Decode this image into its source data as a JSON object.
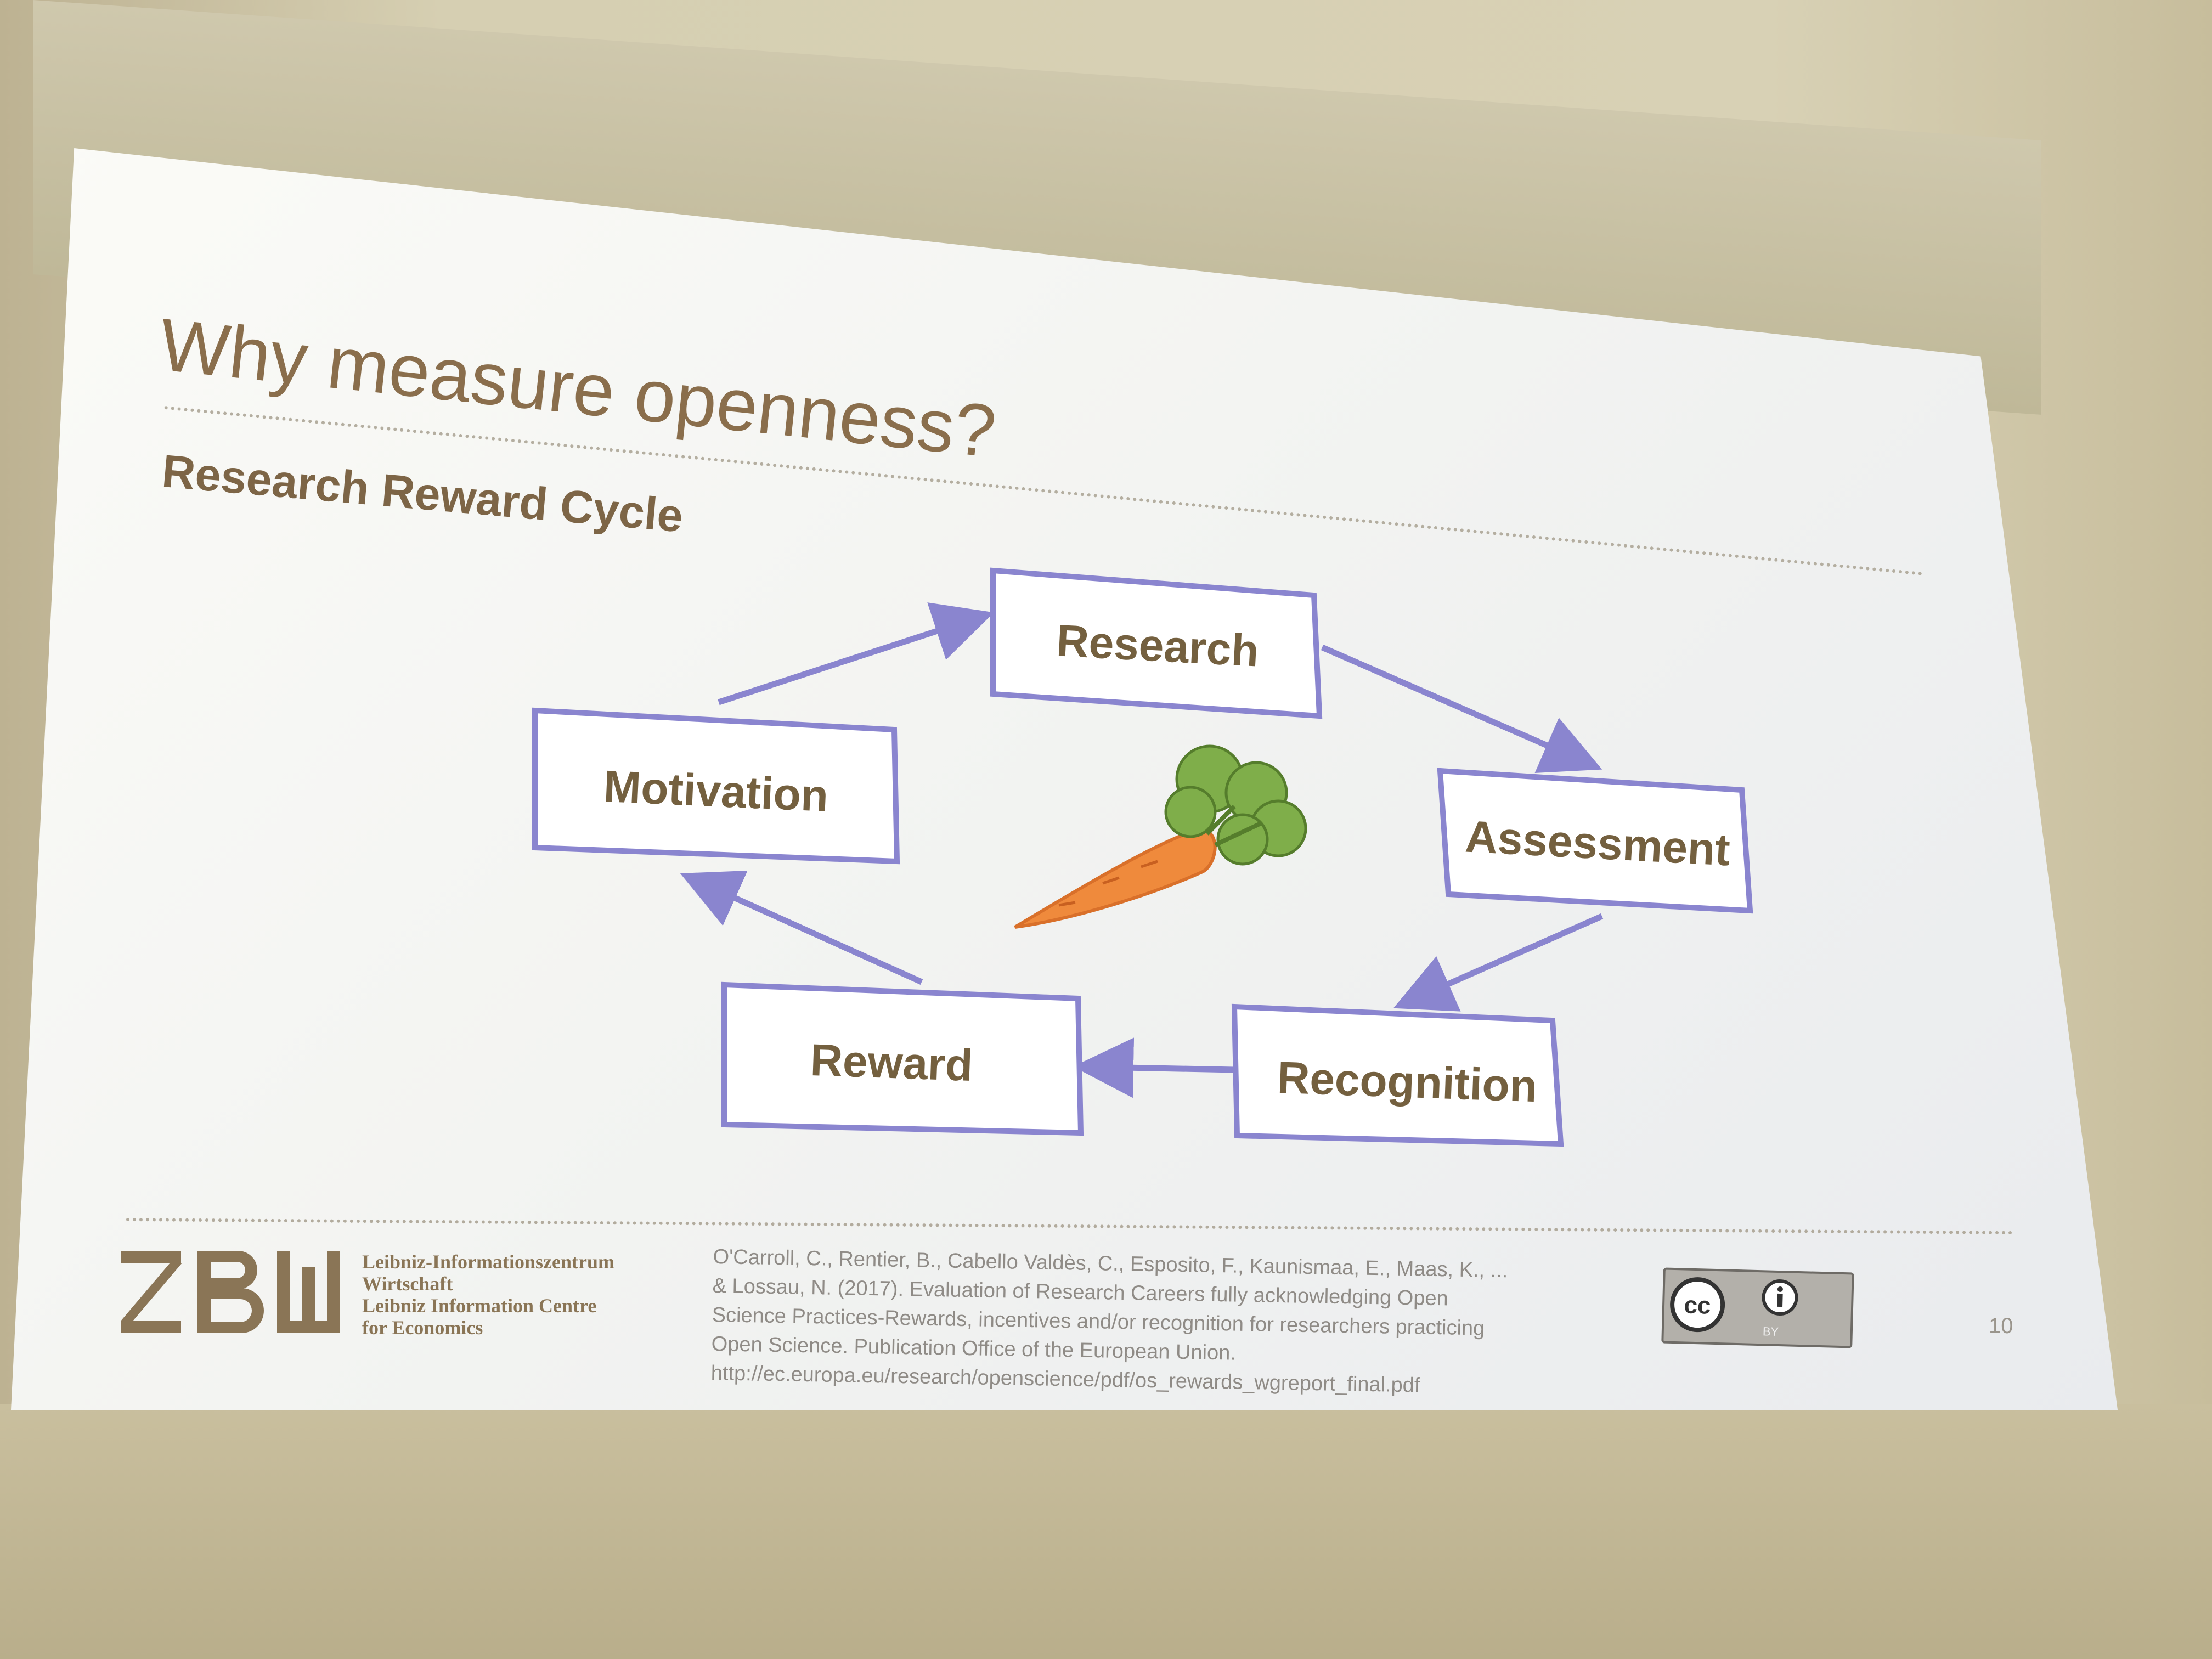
{
  "slide": {
    "title": "Why measure openness?",
    "subtitle": "Research Reward Cycle",
    "page_number": "10"
  },
  "cycle": {
    "nodes": [
      "Research",
      "Assessment",
      "Recognition",
      "Reward",
      "Motivation"
    ],
    "center_image": "carrot-icon",
    "accent_color": "#8a85cf"
  },
  "footer": {
    "logo": "ZBW",
    "institution_lines": [
      "Leibniz-Informationszentrum",
      "Wirtschaft",
      "Leibniz Information Centre",
      "for Economics"
    ],
    "citation_lines": [
      "O'Carroll, C., Rentier, B., Cabello Valdès, C., Esposito, F., Kaunismaa, E., Maas, K., ...",
      "& Lossau, N. (2017). Evaluation of Research Careers fully acknowledging Open",
      "Science Practices-Rewards, incentives and/or recognition for researchers practicing",
      "Open Science. Publication Office of the European Union.",
      "http://ec.europa.eu/research/openscience/pdf/os_rewards_wgreport_final.pdf"
    ],
    "license_badge": "cc-by-icon",
    "license_label": "BY"
  }
}
